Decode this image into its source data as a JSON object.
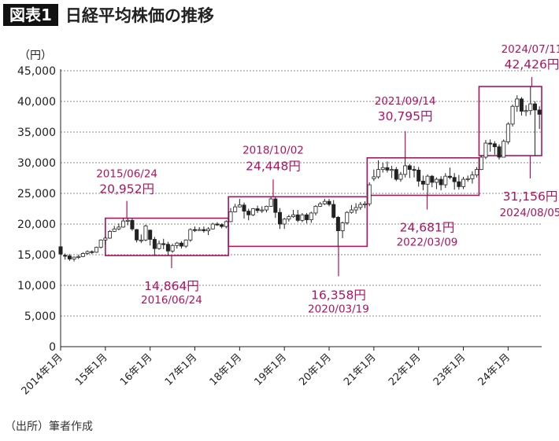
{
  "figure": {
    "badge": "図表1",
    "title": "日経平均株価の推移",
    "source": "（出所）筆者作成"
  },
  "colors": {
    "accent": "#b0125f",
    "candle_up": "#ffffff",
    "candle_down": "#222222",
    "grid": "#888888"
  },
  "chart_data": {
    "type": "candlestick",
    "title": "日経平均株価の推移",
    "ylabel": "（円）",
    "ylim": [
      0,
      45000
    ],
    "yticks": [
      0,
      5000,
      10000,
      15000,
      20000,
      25000,
      30000,
      35000,
      40000,
      45000
    ],
    "ytick_labels": [
      "0",
      "5,000",
      "10,000",
      "15,000",
      "20,000",
      "25,000",
      "30,000",
      "35,000",
      "40,000",
      "45,000"
    ],
    "grid": "horizontal dotted",
    "xlim": [
      2014.0,
      2024.75
    ],
    "xticks": [
      2014,
      2015,
      2016,
      2017,
      2018,
      2019,
      2020,
      2021,
      2022,
      2023,
      2024
    ],
    "xtick_labels": [
      "2014年1月",
      "15年1月",
      "16年1月",
      "17年1月",
      "18年1月",
      "19年1月",
      "20年1月",
      "21年1月",
      "22年1月",
      "23年1月",
      "24年1月"
    ],
    "candles": [
      {
        "t": 2014.0,
        "o": 16300,
        "c": 15100,
        "h": 16400,
        "l": 14900
      },
      {
        "t": 2014.1,
        "o": 14900,
        "c": 14800,
        "h": 15200,
        "l": 14200
      },
      {
        "t": 2014.2,
        "o": 14800,
        "c": 14300,
        "h": 15100,
        "l": 14000
      },
      {
        "t": 2014.3,
        "o": 14300,
        "c": 14600,
        "h": 14700,
        "l": 13900
      },
      {
        "t": 2014.4,
        "o": 14600,
        "c": 14700,
        "h": 15000,
        "l": 14300
      },
      {
        "t": 2014.5,
        "o": 14700,
        "c": 15200,
        "h": 15400,
        "l": 14600
      },
      {
        "t": 2014.6,
        "o": 15200,
        "c": 15500,
        "h": 15700,
        "l": 15000
      },
      {
        "t": 2014.7,
        "o": 15500,
        "c": 15400,
        "h": 15700,
        "l": 15100
      },
      {
        "t": 2014.8,
        "o": 15400,
        "c": 16200,
        "h": 16300,
        "l": 15300
      },
      {
        "t": 2014.9,
        "o": 16200,
        "c": 17400,
        "h": 17500,
        "l": 16000
      },
      {
        "t": 2015.0,
        "o": 17400,
        "c": 17700,
        "h": 18000,
        "l": 16600
      },
      {
        "t": 2015.1,
        "o": 17700,
        "c": 18800,
        "h": 19000,
        "l": 17600
      },
      {
        "t": 2015.2,
        "o": 18800,
        "c": 19200,
        "h": 19700,
        "l": 18700
      },
      {
        "t": 2015.3,
        "o": 19200,
        "c": 19500,
        "h": 20100,
        "l": 19000
      },
      {
        "t": 2015.4,
        "o": 19500,
        "c": 20500,
        "h": 20952,
        "l": 19400
      },
      {
        "t": 2015.5,
        "o": 20500,
        "c": 20600,
        "h": 20952,
        "l": 19800
      },
      {
        "t": 2015.6,
        "o": 20600,
        "c": 19200,
        "h": 20900,
        "l": 18900
      },
      {
        "t": 2015.7,
        "o": 19100,
        "c": 17400,
        "h": 19200,
        "l": 17000
      },
      {
        "t": 2015.8,
        "o": 17400,
        "c": 17400,
        "h": 18300,
        "l": 16900
      },
      {
        "t": 2015.9,
        "o": 17400,
        "c": 19700,
        "h": 19900,
        "l": 17200
      },
      {
        "t": 2016.0,
        "o": 19000,
        "c": 17500,
        "h": 19100,
        "l": 16500
      },
      {
        "t": 2016.1,
        "o": 17500,
        "c": 16000,
        "h": 17900,
        "l": 14900
      },
      {
        "t": 2016.2,
        "o": 16000,
        "c": 16800,
        "h": 17300,
        "l": 15800
      },
      {
        "t": 2016.3,
        "o": 16800,
        "c": 16700,
        "h": 17600,
        "l": 15900
      },
      {
        "t": 2016.4,
        "o": 16700,
        "c": 15600,
        "h": 17100,
        "l": 14864
      },
      {
        "t": 2016.5,
        "o": 15600,
        "c": 16500,
        "h": 16800,
        "l": 15300
      },
      {
        "t": 2016.6,
        "o": 16500,
        "c": 16900,
        "h": 17100,
        "l": 16000
      },
      {
        "t": 2016.7,
        "o": 16900,
        "c": 16400,
        "h": 17200,
        "l": 16000
      },
      {
        "t": 2016.8,
        "o": 16400,
        "c": 17400,
        "h": 17500,
        "l": 16100
      },
      {
        "t": 2016.9,
        "o": 17400,
        "c": 19100,
        "h": 19300,
        "l": 17100
      },
      {
        "t": 2017.0,
        "o": 19100,
        "c": 19000,
        "h": 19600,
        "l": 18700
      },
      {
        "t": 2017.1,
        "o": 19000,
        "c": 19100,
        "h": 19500,
        "l": 18900
      },
      {
        "t": 2017.2,
        "o": 19100,
        "c": 18900,
        "h": 19600,
        "l": 18600
      },
      {
        "t": 2017.3,
        "o": 18900,
        "c": 19200,
        "h": 19500,
        "l": 18200
      },
      {
        "t": 2017.4,
        "o": 19200,
        "c": 20000,
        "h": 20200,
        "l": 19100
      },
      {
        "t": 2017.5,
        "o": 20000,
        "c": 19900,
        "h": 20300,
        "l": 19700
      },
      {
        "t": 2017.6,
        "o": 19900,
        "c": 19600,
        "h": 20100,
        "l": 19300
      },
      {
        "t": 2017.7,
        "o": 19600,
        "c": 20400,
        "h": 20600,
        "l": 19300
      },
      {
        "t": 2017.8,
        "o": 20400,
        "c": 22000,
        "h": 22600,
        "l": 20300
      },
      {
        "t": 2017.9,
        "o": 22000,
        "c": 22800,
        "h": 23300,
        "l": 21900
      },
      {
        "t": 2018.0,
        "o": 22800,
        "c": 23100,
        "h": 24100,
        "l": 22700
      },
      {
        "t": 2018.1,
        "o": 23100,
        "c": 22100,
        "h": 23500,
        "l": 20900
      },
      {
        "t": 2018.2,
        "o": 22100,
        "c": 21500,
        "h": 22500,
        "l": 20600
      },
      {
        "t": 2018.3,
        "o": 21500,
        "c": 22500,
        "h": 22600,
        "l": 21300
      },
      {
        "t": 2018.4,
        "o": 22500,
        "c": 22200,
        "h": 23000,
        "l": 21800
      },
      {
        "t": 2018.5,
        "o": 22200,
        "c": 22300,
        "h": 22900,
        "l": 21800
      },
      {
        "t": 2018.6,
        "o": 22300,
        "c": 22900,
        "h": 23000,
        "l": 21900
      },
      {
        "t": 2018.7,
        "o": 22900,
        "c": 24100,
        "h": 24448,
        "l": 22800
      },
      {
        "t": 2018.8,
        "o": 24100,
        "c": 21900,
        "h": 24448,
        "l": 21000
      },
      {
        "t": 2018.9,
        "o": 21900,
        "c": 20000,
        "h": 22600,
        "l": 19200
      },
      {
        "t": 2019.0,
        "o": 20000,
        "c": 20800,
        "h": 21000,
        "l": 19200
      },
      {
        "t": 2019.1,
        "o": 20800,
        "c": 21200,
        "h": 21500,
        "l": 20400
      },
      {
        "t": 2019.2,
        "o": 21200,
        "c": 21500,
        "h": 22300,
        "l": 21000
      },
      {
        "t": 2019.3,
        "o": 21500,
        "c": 20600,
        "h": 22300,
        "l": 20300
      },
      {
        "t": 2019.4,
        "o": 20600,
        "c": 21500,
        "h": 21800,
        "l": 20300
      },
      {
        "t": 2019.5,
        "o": 21500,
        "c": 20700,
        "h": 21800,
        "l": 20100
      },
      {
        "t": 2019.6,
        "o": 20700,
        "c": 21800,
        "h": 22000,
        "l": 20200
      },
      {
        "t": 2019.7,
        "o": 21800,
        "c": 22900,
        "h": 23100,
        "l": 21400
      },
      {
        "t": 2019.8,
        "o": 22900,
        "c": 23300,
        "h": 23600,
        "l": 22800
      },
      {
        "t": 2019.9,
        "o": 23300,
        "c": 23700,
        "h": 24100,
        "l": 23100
      },
      {
        "t": 2020.0,
        "o": 23700,
        "c": 23200,
        "h": 24100,
        "l": 22900
      },
      {
        "t": 2020.1,
        "o": 23200,
        "c": 21100,
        "h": 23900,
        "l": 20900
      },
      {
        "t": 2020.2,
        "o": 21100,
        "c": 18900,
        "h": 21300,
        "l": 16358
      },
      {
        "t": 2020.3,
        "o": 18900,
        "c": 20200,
        "h": 20400,
        "l": 17700
      },
      {
        "t": 2020.4,
        "o": 20200,
        "c": 21900,
        "h": 22100,
        "l": 19900
      },
      {
        "t": 2020.5,
        "o": 21900,
        "c": 22300,
        "h": 23100,
        "l": 21700
      },
      {
        "t": 2020.6,
        "o": 22300,
        "c": 22700,
        "h": 23400,
        "l": 21700
      },
      {
        "t": 2020.7,
        "o": 22700,
        "c": 23200,
        "h": 23600,
        "l": 22300
      },
      {
        "t": 2020.8,
        "o": 23200,
        "c": 23300,
        "h": 23700,
        "l": 22600
      },
      {
        "t": 2020.9,
        "o": 23300,
        "c": 26400,
        "h": 26800,
        "l": 22900
      },
      {
        "t": 2021.0,
        "o": 27400,
        "c": 27700,
        "h": 28900,
        "l": 27000
      },
      {
        "t": 2021.1,
        "o": 27700,
        "c": 28900,
        "h": 30400,
        "l": 27400
      },
      {
        "t": 2021.2,
        "o": 28900,
        "c": 29200,
        "h": 30000,
        "l": 28400
      },
      {
        "t": 2021.3,
        "o": 29200,
        "c": 28800,
        "h": 30200,
        "l": 28400
      },
      {
        "t": 2021.4,
        "o": 28800,
        "c": 28900,
        "h": 29500,
        "l": 27500
      },
      {
        "t": 2021.5,
        "o": 28900,
        "c": 27300,
        "h": 29300,
        "l": 27000
      },
      {
        "t": 2021.6,
        "o": 27300,
        "c": 28100,
        "h": 28500,
        "l": 26900
      },
      {
        "t": 2021.7,
        "o": 28100,
        "c": 29500,
        "h": 30795,
        "l": 27600
      },
      {
        "t": 2021.8,
        "o": 29500,
        "c": 28900,
        "h": 29800,
        "l": 27500
      },
      {
        "t": 2021.9,
        "o": 28900,
        "c": 28800,
        "h": 29500,
        "l": 27600
      },
      {
        "t": 2022.0,
        "o": 28800,
        "c": 27000,
        "h": 29300,
        "l": 26100
      },
      {
        "t": 2022.1,
        "o": 27000,
        "c": 26500,
        "h": 27900,
        "l": 25500
      },
      {
        "t": 2022.2,
        "o": 26500,
        "c": 27800,
        "h": 28100,
        "l": 24681
      },
      {
        "t": 2022.3,
        "o": 27800,
        "c": 26800,
        "h": 28000,
        "l": 26000
      },
      {
        "t": 2022.4,
        "o": 26800,
        "c": 27300,
        "h": 27600,
        "l": 25700
      },
      {
        "t": 2022.5,
        "o": 27300,
        "c": 26400,
        "h": 27800,
        "l": 25500
      },
      {
        "t": 2022.6,
        "o": 26400,
        "c": 27800,
        "h": 28300,
        "l": 25900
      },
      {
        "t": 2022.7,
        "o": 27800,
        "c": 27600,
        "h": 29200,
        "l": 27300
      },
      {
        "t": 2022.8,
        "o": 27600,
        "c": 26900,
        "h": 28300,
        "l": 25600
      },
      {
        "t": 2022.9,
        "o": 26900,
        "c": 26100,
        "h": 28000,
        "l": 25600
      },
      {
        "t": 2023.0,
        "o": 26100,
        "c": 27300,
        "h": 27700,
        "l": 25700
      },
      {
        "t": 2023.1,
        "o": 27300,
        "c": 27400,
        "h": 27900,
        "l": 26900
      },
      {
        "t": 2023.2,
        "o": 27400,
        "c": 28000,
        "h": 28600,
        "l": 26600
      },
      {
        "t": 2023.3,
        "o": 28000,
        "c": 28900,
        "h": 29300,
        "l": 27600
      },
      {
        "t": 2023.4,
        "o": 28900,
        "c": 30900,
        "h": 31200,
        "l": 28800
      },
      {
        "t": 2023.5,
        "o": 30900,
        "c": 33200,
        "h": 33700,
        "l": 30600
      },
      {
        "t": 2023.6,
        "o": 33200,
        "c": 33100,
        "h": 33800,
        "l": 31800
      },
      {
        "t": 2023.7,
        "o": 33100,
        "c": 32600,
        "h": 33500,
        "l": 31300
      },
      {
        "t": 2023.8,
        "o": 32600,
        "c": 30900,
        "h": 33000,
        "l": 30500
      },
      {
        "t": 2023.9,
        "o": 30900,
        "c": 33500,
        "h": 33800,
        "l": 30900
      },
      {
        "t": 2024.0,
        "o": 33400,
        "c": 36300,
        "h": 36600,
        "l": 33000
      },
      {
        "t": 2024.1,
        "o": 36300,
        "c": 39200,
        "h": 39500,
        "l": 35900
      },
      {
        "t": 2024.2,
        "o": 39200,
        "c": 40400,
        "h": 41000,
        "l": 38300
      },
      {
        "t": 2024.3,
        "o": 40400,
        "c": 38400,
        "h": 40700,
        "l": 37700
      },
      {
        "t": 2024.4,
        "o": 38400,
        "c": 38500,
        "h": 39400,
        "l": 37600
      },
      {
        "t": 2024.5,
        "o": 38500,
        "c": 39600,
        "h": 42426,
        "l": 37800
      },
      {
        "t": 2024.6,
        "o": 39600,
        "c": 38600,
        "h": 40000,
        "l": 31156
      },
      {
        "t": 2024.7,
        "o": 38600,
        "c": 37900,
        "h": 39200,
        "l": 35500
      }
    ],
    "range_boxes": [
      {
        "x0": 2015.0,
        "x1": 2017.75,
        "y0": 14864,
        "y1": 20952
      },
      {
        "x0": 2017.75,
        "x1": 2020.85,
        "y0": 16358,
        "y1": 24448
      },
      {
        "x0": 2020.85,
        "x1": 2023.35,
        "y0": 24681,
        "y1": 30795
      },
      {
        "x0": 2023.35,
        "x1": 2024.75,
        "y0": 31156,
        "y1": 42426
      }
    ],
    "annotations": [
      {
        "date": "2015/06/24",
        "value": "20,952円",
        "x": 2015.48,
        "y": 20952,
        "pos": "above"
      },
      {
        "date": "2016/06/24",
        "value": "14,864円",
        "x": 2016.48,
        "y": 14864,
        "pos": "below"
      },
      {
        "date": "2018/10/02",
        "value": "24,448円",
        "x": 2018.75,
        "y": 24448,
        "pos": "above"
      },
      {
        "date": "2020/03/19",
        "value": "16,358円",
        "x": 2020.21,
        "y": 16358,
        "pos": "below"
      },
      {
        "date": "2021/09/14",
        "value": "30,795円",
        "x": 2021.7,
        "y": 30795,
        "pos": "above"
      },
      {
        "date": "2022/03/09",
        "value": "24,681円",
        "x": 2022.19,
        "y": 24681,
        "pos": "below"
      },
      {
        "date": "2024/07/11",
        "value": "42,426円",
        "x": 2024.53,
        "y": 42426,
        "pos": "above"
      },
      {
        "date": "2024/08/05",
        "value": "31,156円",
        "x": 2024.6,
        "y": 31156,
        "pos": "right-below"
      }
    ]
  }
}
